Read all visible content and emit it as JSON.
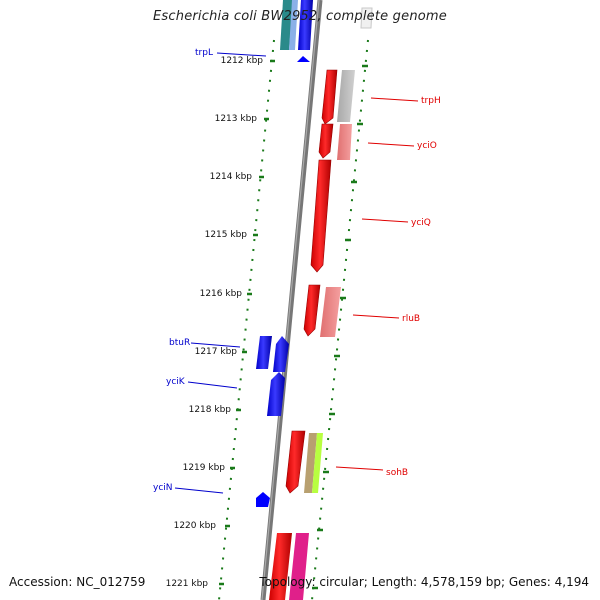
{
  "header": {
    "title": "Escherichia coli BW2952, complete genome"
  },
  "footer": {
    "accession": "Accession: NC_012759",
    "summary": "Topology: circular; Length: 4,578,159 bp; Genes: 4,194"
  },
  "ruler": {
    "ticks": [
      "1212 kbp",
      "1213 kbp",
      "1214 kbp",
      "1215 kbp",
      "1216 kbp",
      "1217 kbp",
      "1218 kbp",
      "1219 kbp",
      "1220 kbp",
      "1221 kbp"
    ]
  },
  "genes": {
    "forward": [
      "trpH",
      "yciO",
      "yciQ",
      "rluB",
      "sohB"
    ],
    "reverse": [
      "trpL",
      "btuR",
      "yciK",
      "yciN"
    ]
  },
  "colors": {
    "forward": "#ff0000",
    "reverse": "#0000ff",
    "backbone": "#808080",
    "ticks": "#1a7a1a"
  }
}
